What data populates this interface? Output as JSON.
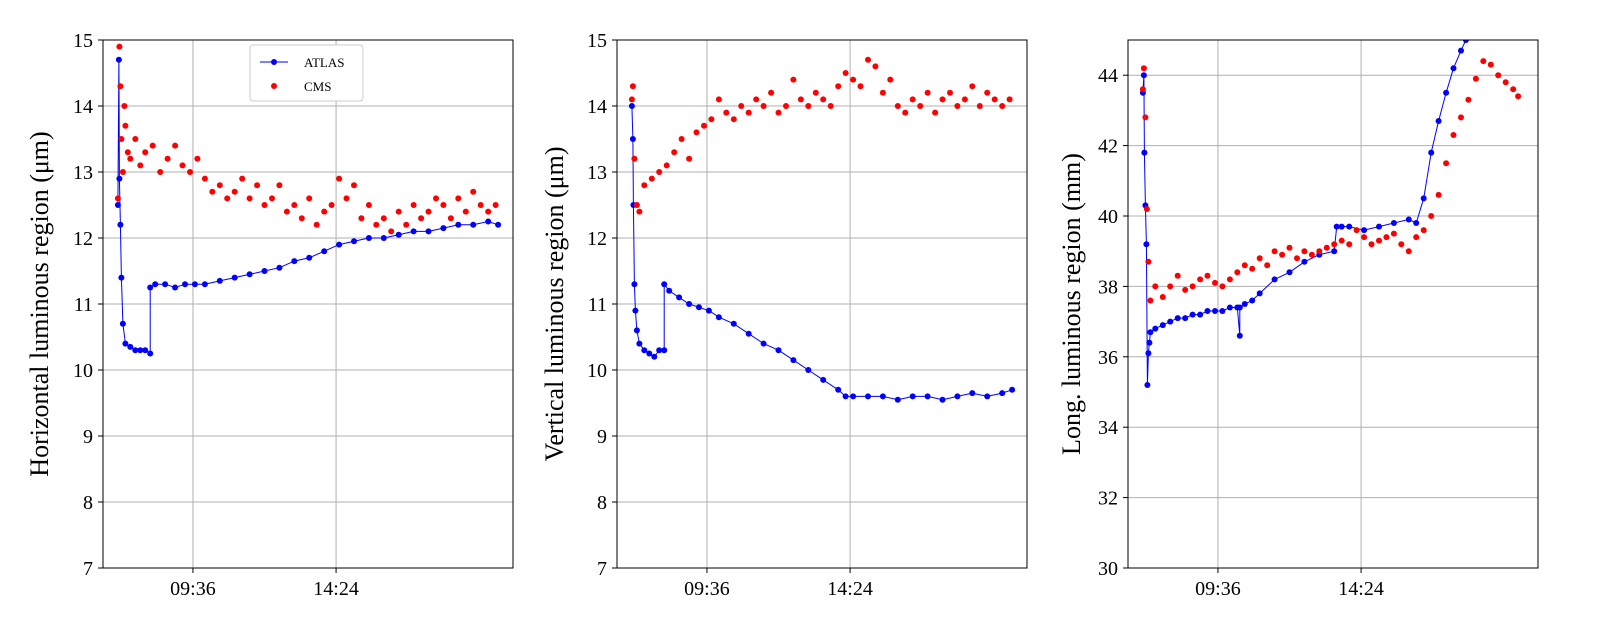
{
  "chart_data": [
    {
      "type": "scatter",
      "title": "",
      "xlabel": "",
      "ylabel": "Horizontal luminous region (μm)",
      "ylim": [
        7,
        15
      ],
      "yticks": [
        7,
        8,
        9,
        10,
        11,
        12,
        13,
        14,
        15
      ],
      "xlim": [
        "06:35",
        "20:20"
      ],
      "xticks": [
        "09:36",
        "14:24"
      ],
      "grid": true,
      "legend": "top-center",
      "series": [
        {
          "name": "ATLAS",
          "color": "#0000ff",
          "style": "line-markers",
          "x": [
            "07:05",
            "07:07",
            "07:08",
            "07:10",
            "07:12",
            "07:15",
            "07:20",
            "07:30",
            "07:40",
            "07:50",
            "08:00",
            "08:10",
            "08:10",
            "08:20",
            "08:40",
            "09:00",
            "09:20",
            "09:40",
            "10:00",
            "10:30",
            "11:00",
            "11:30",
            "12:00",
            "12:30",
            "13:00",
            "13:30",
            "14:00",
            "14:30",
            "15:00",
            "15:30",
            "16:00",
            "16:30",
            "17:00",
            "17:30",
            "18:00",
            "18:30",
            "19:00",
            "19:30",
            "19:50"
          ],
          "values": [
            12.5,
            14.7,
            12.9,
            12.2,
            11.4,
            10.7,
            10.4,
            10.35,
            10.3,
            10.3,
            10.3,
            10.25,
            11.25,
            11.3,
            11.3,
            11.25,
            11.3,
            11.3,
            11.3,
            11.35,
            11.4,
            11.45,
            11.5,
            11.55,
            11.65,
            11.7,
            11.8,
            11.9,
            11.95,
            12.0,
            12.0,
            12.05,
            12.1,
            12.1,
            12.15,
            12.2,
            12.2,
            12.25,
            12.2
          ]
        },
        {
          "name": "CMS",
          "color": "#ff0000",
          "style": "markers",
          "x": [
            "07:05",
            "07:08",
            "07:10",
            "07:12",
            "07:15",
            "07:18",
            "07:20",
            "07:25",
            "07:30",
            "07:40",
            "07:50",
            "08:00",
            "08:15",
            "08:30",
            "08:45",
            "09:00",
            "09:15",
            "09:30",
            "09:45",
            "10:00",
            "10:15",
            "10:30",
            "10:45",
            "11:00",
            "11:15",
            "11:30",
            "11:45",
            "12:00",
            "12:15",
            "12:30",
            "12:45",
            "13:00",
            "13:15",
            "13:30",
            "13:45",
            "14:00",
            "14:15",
            "14:30",
            "14:45",
            "15:00",
            "15:15",
            "15:30",
            "15:45",
            "16:00",
            "16:15",
            "16:30",
            "16:45",
            "17:00",
            "17:15",
            "17:30",
            "17:45",
            "18:00",
            "18:15",
            "18:30",
            "18:45",
            "19:00",
            "19:15",
            "19:30",
            "19:45"
          ],
          "values": [
            12.6,
            14.9,
            14.3,
            13.5,
            13.0,
            14.0,
            13.7,
            13.3,
            13.2,
            13.5,
            13.1,
            13.3,
            13.4,
            13.0,
            13.2,
            13.4,
            13.1,
            13.0,
            13.2,
            12.9,
            12.7,
            12.8,
            12.6,
            12.7,
            12.9,
            12.6,
            12.8,
            12.5,
            12.6,
            12.8,
            12.4,
            12.5,
            12.3,
            12.6,
            12.2,
            12.4,
            12.5,
            12.9,
            12.6,
            12.8,
            12.3,
            12.5,
            12.2,
            12.3,
            12.1,
            12.4,
            12.2,
            12.5,
            12.3,
            12.4,
            12.6,
            12.5,
            12.3,
            12.6,
            12.4,
            12.7,
            12.5,
            12.4,
            12.5
          ]
        }
      ]
    },
    {
      "type": "scatter",
      "title": "",
      "xlabel": "",
      "ylabel": "Vertical luminous region (μm)",
      "ylim": [
        7,
        15
      ],
      "yticks": [
        7,
        8,
        9,
        10,
        11,
        12,
        13,
        14,
        15
      ],
      "xlim": [
        "06:35",
        "20:20"
      ],
      "xticks": [
        "09:36",
        "14:24"
      ],
      "grid": true,
      "series": [
        {
          "name": "ATLAS",
          "color": "#0000ff",
          "style": "line-markers",
          "x": [
            "07:05",
            "07:07",
            "07:08",
            "07:10",
            "07:12",
            "07:15",
            "07:20",
            "07:30",
            "07:40",
            "07:50",
            "08:00",
            "08:10",
            "08:10",
            "08:20",
            "08:40",
            "09:00",
            "09:20",
            "09:40",
            "10:00",
            "10:30",
            "11:00",
            "11:30",
            "12:00",
            "12:30",
            "13:00",
            "13:30",
            "14:00",
            "14:15",
            "14:30",
            "15:00",
            "15:30",
            "16:00",
            "16:30",
            "17:00",
            "17:30",
            "18:00",
            "18:30",
            "19:00",
            "19:30",
            "19:50"
          ],
          "values": [
            14.0,
            13.5,
            12.5,
            11.3,
            10.9,
            10.6,
            10.4,
            10.3,
            10.25,
            10.2,
            10.3,
            10.3,
            11.3,
            11.2,
            11.1,
            11.0,
            10.95,
            10.9,
            10.8,
            10.7,
            10.55,
            10.4,
            10.3,
            10.15,
            10.0,
            9.85,
            9.7,
            9.6,
            9.6,
            9.6,
            9.6,
            9.55,
            9.6,
            9.6,
            9.55,
            9.6,
            9.65,
            9.6,
            9.65,
            9.7
          ]
        },
        {
          "name": "CMS",
          "color": "#ff0000",
          "style": "markers",
          "x": [
            "07:05",
            "07:07",
            "07:10",
            "07:15",
            "07:20",
            "07:30",
            "07:45",
            "08:00",
            "08:15",
            "08:30",
            "08:45",
            "09:00",
            "09:15",
            "09:30",
            "09:45",
            "10:00",
            "10:15",
            "10:30",
            "10:45",
            "11:00",
            "11:15",
            "11:30",
            "11:45",
            "12:00",
            "12:15",
            "12:30",
            "12:45",
            "13:00",
            "13:15",
            "13:30",
            "13:45",
            "14:00",
            "14:15",
            "14:30",
            "14:45",
            "15:00",
            "15:15",
            "15:30",
            "15:45",
            "16:00",
            "16:15",
            "16:30",
            "16:45",
            "17:00",
            "17:15",
            "17:30",
            "17:45",
            "18:00",
            "18:15",
            "18:30",
            "18:45",
            "19:00",
            "19:15",
            "19:30",
            "19:45"
          ],
          "values": [
            14.1,
            14.3,
            13.2,
            12.5,
            12.4,
            12.8,
            12.9,
            13.0,
            13.1,
            13.3,
            13.5,
            13.2,
            13.6,
            13.7,
            13.8,
            14.1,
            13.9,
            13.8,
            14.0,
            13.9,
            14.1,
            14.0,
            14.2,
            13.9,
            14.0,
            14.4,
            14.1,
            14.0,
            14.2,
            14.1,
            14.0,
            14.3,
            14.5,
            14.4,
            14.3,
            14.7,
            14.6,
            14.2,
            14.4,
            14.0,
            13.9,
            14.1,
            14.0,
            14.2,
            13.9,
            14.1,
            14.2,
            14.0,
            14.1,
            14.3,
            14.0,
            14.2,
            14.1,
            14.0,
            14.1
          ]
        }
      ]
    },
    {
      "type": "scatter",
      "title": "",
      "xlabel": "",
      "ylabel": "Long. luminous region (mm)",
      "ylim": [
        30,
        45
      ],
      "yticks": [
        30,
        32,
        34,
        36,
        38,
        40,
        42,
        44
      ],
      "xlim": [
        "06:35",
        "20:20"
      ],
      "xticks": [
        "09:36",
        "14:24"
      ],
      "grid": true,
      "series": [
        {
          "name": "ATLAS",
          "color": "#0000ff",
          "style": "line-markers",
          "x": [
            "07:05",
            "07:07",
            "07:08",
            "07:10",
            "07:12",
            "07:14",
            "07:16",
            "07:18",
            "07:20",
            "07:30",
            "07:45",
            "08:00",
            "08:15",
            "08:30",
            "08:45",
            "09:00",
            "09:15",
            "09:30",
            "09:45",
            "10:00",
            "10:15",
            "10:20",
            "10:20",
            "10:30",
            "10:45",
            "11:00",
            "11:30",
            "12:00",
            "12:30",
            "13:00",
            "13:30",
            "13:35",
            "13:45",
            "14:00",
            "14:30",
            "15:00",
            "15:30",
            "16:00",
            "16:15",
            "16:30",
            "16:45",
            "17:00",
            "17:15",
            "17:30",
            "17:45",
            "17:55"
          ],
          "values": [
            43.5,
            44.0,
            41.8,
            40.3,
            39.2,
            35.2,
            36.1,
            36.4,
            36.7,
            36.8,
            36.9,
            37.0,
            37.1,
            37.1,
            37.2,
            37.2,
            37.3,
            37.3,
            37.3,
            37.4,
            37.4,
            36.6,
            37.4,
            37.5,
            37.6,
            37.8,
            38.2,
            38.4,
            38.7,
            38.9,
            39.0,
            39.7,
            39.7,
            39.7,
            39.6,
            39.7,
            39.8,
            39.9,
            39.8,
            40.5,
            41.8,
            42.7,
            43.5,
            44.2,
            44.7,
            45.0
          ]
        },
        {
          "name": "CMS",
          "color": "#ff0000",
          "style": "markers",
          "x": [
            "07:05",
            "07:07",
            "07:10",
            "07:13",
            "07:16",
            "07:20",
            "07:30",
            "07:45",
            "08:00",
            "08:15",
            "08:30",
            "08:45",
            "09:00",
            "09:15",
            "09:30",
            "09:45",
            "10:00",
            "10:15",
            "10:30",
            "10:45",
            "11:00",
            "11:15",
            "11:30",
            "11:45",
            "12:00",
            "12:15",
            "12:30",
            "12:45",
            "13:00",
            "13:15",
            "13:30",
            "13:45",
            "14:00",
            "14:15",
            "14:30",
            "14:45",
            "15:00",
            "15:15",
            "15:30",
            "15:45",
            "16:00",
            "16:15",
            "16:30",
            "16:45",
            "17:00",
            "17:15",
            "17:30",
            "17:45",
            "18:00",
            "18:15",
            "18:30",
            "18:45",
            "19:00",
            "19:15",
            "19:30",
            "19:40"
          ],
          "values": [
            43.6,
            44.2,
            42.8,
            40.2,
            38.7,
            37.6,
            38.0,
            37.7,
            38.0,
            38.3,
            37.9,
            38.0,
            38.2,
            38.3,
            38.1,
            38.0,
            38.2,
            38.4,
            38.6,
            38.5,
            38.8,
            38.6,
            39.0,
            38.9,
            39.1,
            38.8,
            39.0,
            38.9,
            39.0,
            39.1,
            39.2,
            39.3,
            39.2,
            39.6,
            39.4,
            39.2,
            39.3,
            39.4,
            39.5,
            39.2,
            39.0,
            39.4,
            39.6,
            40.0,
            40.6,
            41.5,
            42.3,
            42.8,
            43.3,
            43.9,
            44.4,
            44.3,
            44.0,
            43.8,
            43.6,
            43.4
          ]
        }
      ]
    }
  ]
}
